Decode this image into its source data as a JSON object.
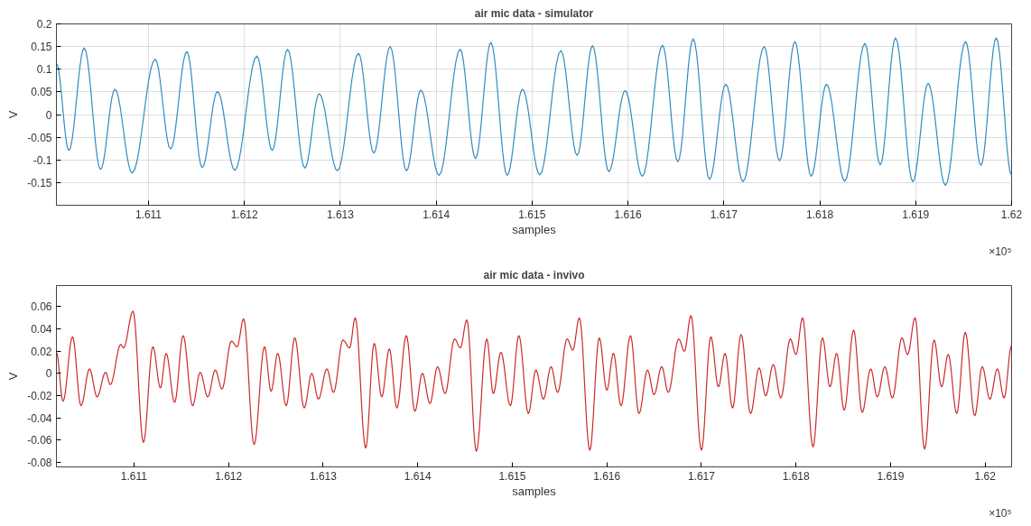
{
  "chart_data": [
    {
      "type": "line",
      "title": "air mic data - simulator",
      "xlabel": "samples",
      "ylabel": "V",
      "annotations": [
        "×10⁵"
      ],
      "grid": true,
      "xlim": [
        1.61004,
        1.62
      ],
      "ylim": [
        -0.2,
        0.2
      ],
      "xticks": [
        1.611,
        1.612,
        1.613,
        1.614,
        1.615,
        1.616,
        1.617,
        1.618,
        1.619,
        1.62
      ],
      "yticks": [
        -0.15,
        -0.1,
        -0.05,
        0,
        0.05,
        0.1,
        0.15,
        0.2
      ],
      "x": [
        1.61004,
        1.61017,
        1.61033,
        1.6105,
        1.61065,
        1.61083,
        1.61107,
        1.61123,
        1.6114,
        1.61156,
        1.61172,
        1.6119,
        1.61213,
        1.61229,
        1.61245,
        1.61263,
        1.61278,
        1.61297,
        1.61319,
        1.61335,
        1.61352,
        1.61369,
        1.61384,
        1.61403,
        1.61425,
        1.61441,
        1.61457,
        1.61474,
        1.6149,
        1.61508,
        1.6153,
        1.61547,
        1.61563,
        1.6158,
        1.61597,
        1.61615,
        1.61636,
        1.61652,
        1.61668,
        1.61685,
        1.61702,
        1.6172,
        1.61742,
        1.61758,
        1.61774,
        1.61791,
        1.61807,
        1.61826,
        1.61847,
        1.61863,
        1.61879,
        1.61897,
        1.61913,
        1.61931,
        1.61952,
        1.61968,
        1.61984,
        1.62
      ],
      "series": [
        {
          "color": "#2f8cc2",
          "values": [
            0.113,
            -0.079,
            0.147,
            -0.121,
            0.056,
            -0.129,
            0.122,
            -0.076,
            0.139,
            -0.117,
            0.051,
            -0.123,
            0.129,
            -0.079,
            0.144,
            -0.118,
            0.046,
            -0.124,
            0.135,
            -0.085,
            0.15,
            -0.124,
            0.054,
            -0.134,
            0.144,
            -0.097,
            0.159,
            -0.134,
            0.056,
            -0.133,
            0.141,
            -0.09,
            0.152,
            -0.126,
            0.053,
            -0.136,
            0.153,
            -0.104,
            0.167,
            -0.143,
            0.067,
            -0.148,
            0.15,
            -0.102,
            0.161,
            -0.136,
            0.067,
            -0.147,
            0.157,
            -0.111,
            0.169,
            -0.148,
            0.069,
            -0.156,
            0.161,
            -0.112,
            0.169,
            -0.134
          ]
        }
      ]
    },
    {
      "type": "line",
      "title": "air mic data - invivo",
      "xlabel": "samples",
      "ylabel": "V",
      "annotations": [
        "×10⁵"
      ],
      "grid": false,
      "xlim": [
        1.61018,
        1.62028
      ],
      "ylim": [
        -0.084,
        0.079
      ],
      "xticks": [
        1.611,
        1.612,
        1.613,
        1.614,
        1.615,
        1.616,
        1.617,
        1.618,
        1.619,
        1.62
      ],
      "yticks": [
        -0.08,
        -0.06,
        -0.04,
        -0.02,
        0,
        0.02,
        0.04,
        0.06
      ],
      "x": [
        1.61018,
        1.61025,
        1.61035,
        1.61044,
        1.61053,
        1.61061,
        1.6107,
        1.61075,
        1.61086,
        1.61089,
        1.61099,
        1.6111,
        1.6112,
        1.61128,
        1.61134,
        1.61143,
        1.61152,
        1.61162,
        1.6117,
        1.61178,
        1.61186,
        1.61193,
        1.61203,
        1.61209,
        1.61216,
        1.61227,
        1.61238,
        1.61245,
        1.61252,
        1.61261,
        1.6127,
        1.6128,
        1.61288,
        1.61295,
        1.61304,
        1.61311,
        1.61321,
        1.61328,
        1.61334,
        1.61345,
        1.61354,
        1.61362,
        1.6137,
        1.61378,
        1.61388,
        1.61397,
        1.61405,
        1.61413,
        1.61421,
        1.61429,
        1.61439,
        1.61445,
        1.61452,
        1.61462,
        1.61473,
        1.6148,
        1.61488,
        1.61498,
        1.61507,
        1.61517,
        1.61525,
        1.61533,
        1.61541,
        1.61548,
        1.61558,
        1.61564,
        1.61571,
        1.61582,
        1.61592,
        1.616,
        1.61607,
        1.61615,
        1.61625,
        1.61634,
        1.61643,
        1.6165,
        1.61658,
        1.61665,
        1.61676,
        1.61682,
        1.61689,
        1.617,
        1.6171,
        1.61718,
        1.61725,
        1.61733,
        1.61742,
        1.61752,
        1.61761,
        1.61768,
        1.61776,
        1.61784,
        1.61794,
        1.618,
        1.61807,
        1.61818,
        1.61828,
        1.61836,
        1.61843,
        1.61851,
        1.61861,
        1.6187,
        1.61879,
        1.61886,
        1.61894,
        1.61902,
        1.61912,
        1.61918,
        1.61926,
        1.61936,
        1.61946,
        1.61954,
        1.61961,
        1.6197,
        1.61979,
        1.61989,
        1.61997,
        1.62005,
        1.62013,
        1.6202,
        1.62028
      ],
      "series": [
        {
          "color": "#cc2a2a",
          "values": [
            0.019,
            -0.025,
            0.033,
            -0.029,
            0.004,
            -0.021,
            0.001,
            -0.01,
            0.026,
            0.023,
            0.056,
            -0.062,
            0.024,
            -0.013,
            0.018,
            -0.026,
            0.034,
            -0.029,
            0.001,
            -0.021,
            0.003,
            -0.014,
            0.029,
            0.024,
            0.049,
            -0.064,
            0.024,
            -0.016,
            0.018,
            -0.029,
            0.032,
            -0.031,
            0.0,
            -0.023,
            0.004,
            -0.017,
            0.03,
            0.023,
            0.05,
            -0.067,
            0.027,
            -0.021,
            0.022,
            -0.031,
            0.034,
            -0.034,
            0.0,
            -0.027,
            0.006,
            -0.018,
            0.031,
            0.023,
            0.048,
            -0.07,
            0.031,
            -0.018,
            0.019,
            -0.029,
            0.034,
            -0.036,
            0.003,
            -0.023,
            0.006,
            -0.017,
            0.031,
            0.021,
            0.05,
            -0.069,
            0.032,
            -0.015,
            0.018,
            -0.029,
            0.034,
            -0.036,
            0.003,
            -0.019,
            0.006,
            -0.017,
            0.031,
            0.02,
            0.052,
            -0.069,
            0.033,
            -0.012,
            0.018,
            -0.031,
            0.035,
            -0.036,
            0.005,
            -0.02,
            0.008,
            -0.022,
            0.031,
            0.017,
            0.05,
            -0.066,
            0.032,
            -0.012,
            0.018,
            -0.033,
            0.039,
            -0.035,
            0.004,
            -0.021,
            0.006,
            -0.022,
            0.032,
            0.017,
            0.05,
            -0.068,
            0.03,
            -0.012,
            0.017,
            -0.036,
            0.037,
            -0.038,
            0.006,
            -0.023,
            0.004,
            -0.022,
            0.025
          ]
        }
      ]
    }
  ]
}
